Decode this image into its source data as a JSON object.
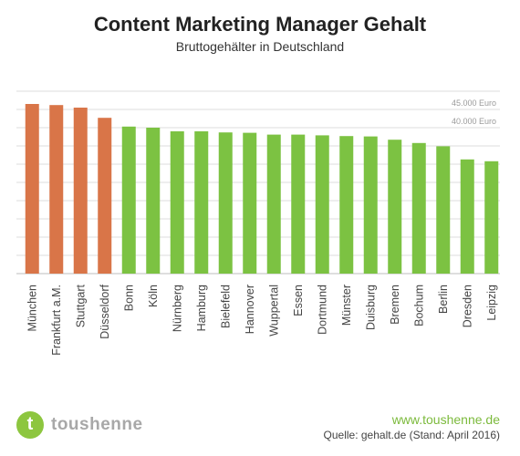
{
  "chart_data": {
    "type": "bar",
    "title": "Content Marketing Manager Gehalt",
    "subtitle": "Bruttogehälter in Deutschland",
    "categories": [
      "München",
      "Frankfurt a.M.",
      "Stuttgart",
      "Düsseldorf",
      "Bonn",
      "Köln",
      "Nürnberg",
      "Hamburg",
      "Bielefeld",
      "Hannover",
      "Wuppertal",
      "Essen",
      "Dortmund",
      "Münster",
      "Duisburg",
      "Bremen",
      "Bochum",
      "Berlin",
      "Dresden",
      "Leipzig"
    ],
    "values": [
      46500,
      46200,
      45500,
      42700,
      40300,
      40000,
      39000,
      39000,
      38700,
      38600,
      38100,
      38100,
      37900,
      37700,
      37600,
      36700,
      35800,
      34900,
      31300,
      30800
    ],
    "bar_colors": [
      "#d97548",
      "#d97548",
      "#d97548",
      "#d97548",
      "#7cc242",
      "#7cc242",
      "#7cc242",
      "#7cc242",
      "#7cc242",
      "#7cc242",
      "#7cc242",
      "#7cc242",
      "#7cc242",
      "#7cc242",
      "#7cc242",
      "#7cc242",
      "#7cc242",
      "#7cc242",
      "#7cc242",
      "#7cc242"
    ],
    "ylim": [
      0,
      50000
    ],
    "gridline_step": 5000,
    "reference_lines": [
      {
        "value": 45000,
        "label": "45.000 Euro"
      },
      {
        "value": 40000,
        "label": "40.000 Euro"
      }
    ],
    "grid": true,
    "legend": "none"
  },
  "footer": {
    "brand_initial": "t",
    "brand_name": "toushenne",
    "website": "www.toushenne.de",
    "source": "Quelle: gehalt.de (Stand: April 2016)"
  },
  "colors": {
    "orange": "#d97548",
    "green": "#7cc242",
    "grid": "#dedede",
    "brand_green": "#8dc63f"
  }
}
